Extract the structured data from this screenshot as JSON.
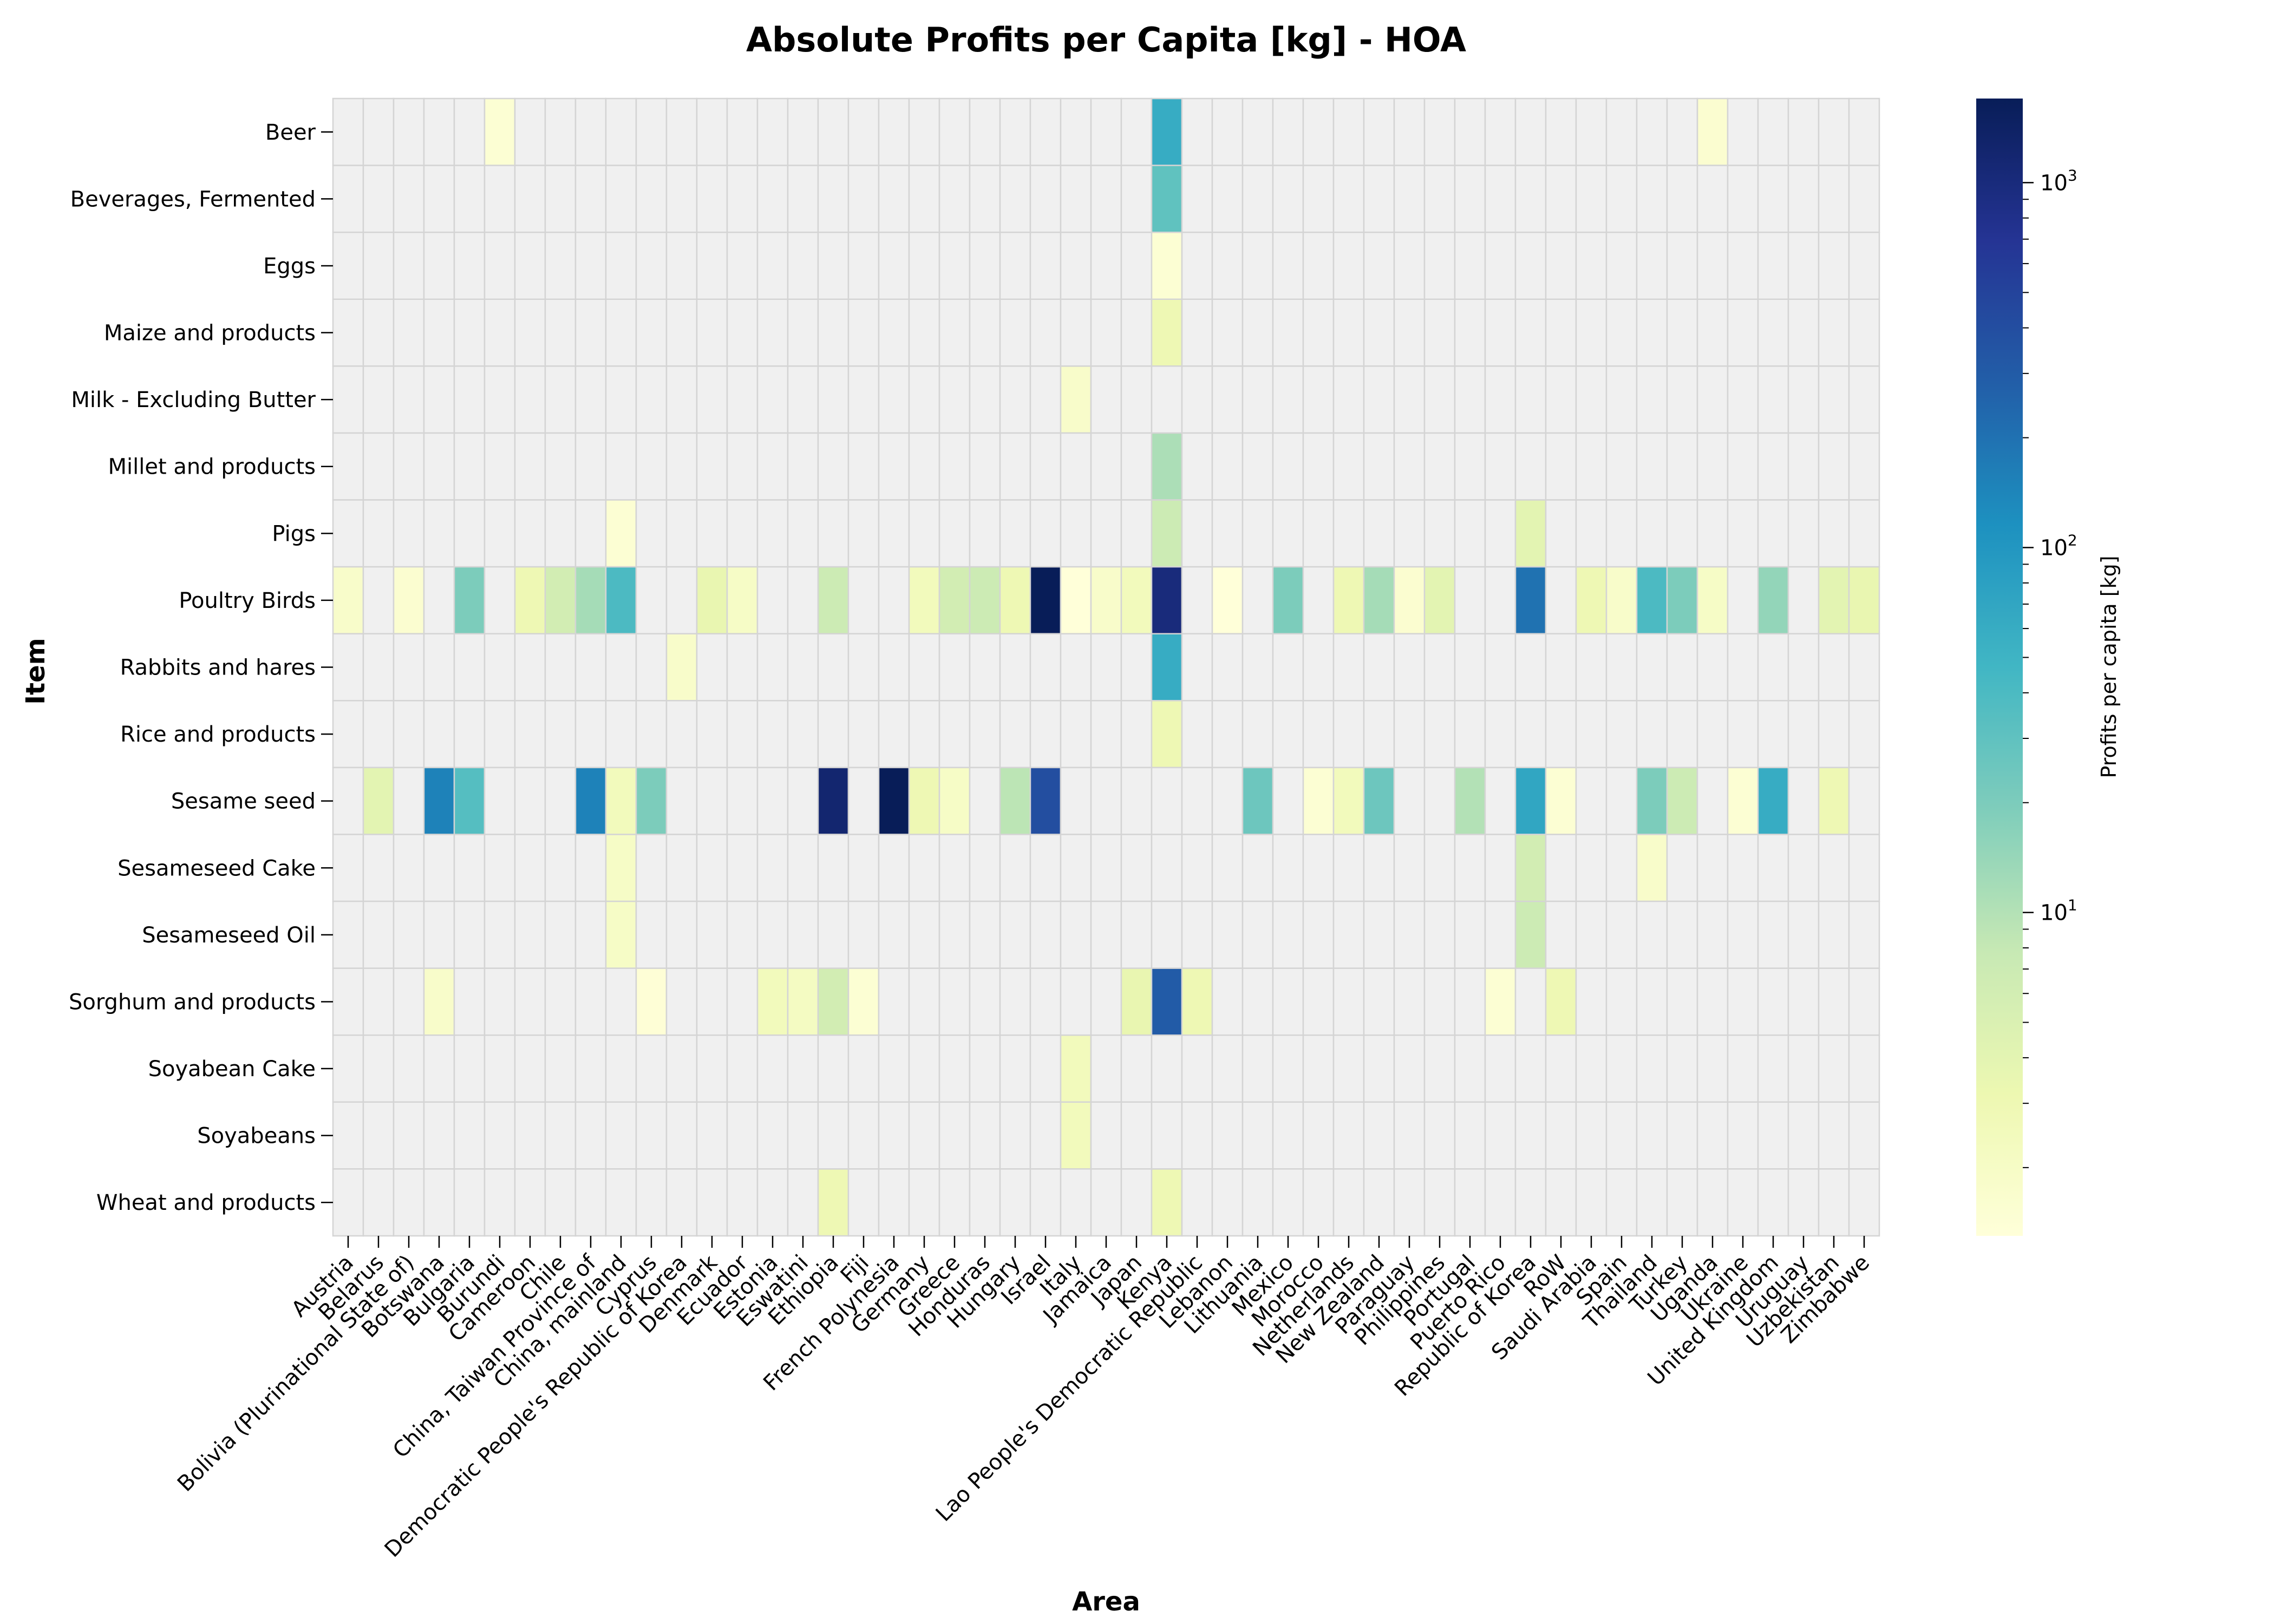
{
  "chart_data": {
    "type": "heatmap",
    "title": "Absolute Profits per Capita [kg] - HOA",
    "xlabel": "Area",
    "ylabel": "Item",
    "x": [
      "Austria",
      "Belarus",
      "Bolivia (Plurinational State of)",
      "Botswana",
      "Bulgaria",
      "Burundi",
      "Cameroon",
      "Chile",
      "China, Taiwan Province of",
      "China, mainland",
      "Cyprus",
      "Democratic People's Republic of Korea",
      "Denmark",
      "Ecuador",
      "Estonia",
      "Eswatini",
      "Ethiopia",
      "Fiji",
      "French Polynesia",
      "Germany",
      "Greece",
      "Honduras",
      "Hungary",
      "Israel",
      "Italy",
      "Jamaica",
      "Japan",
      "Kenya",
      "Lao People's Democratic Republic",
      "Lebanon",
      "Lithuania",
      "Mexico",
      "Morocco",
      "Netherlands",
      "New Zealand",
      "Paraguay",
      "Philippines",
      "Portugal",
      "Puerto Rico",
      "Republic of Korea",
      "RoW",
      "Saudi Arabia",
      "Spain",
      "Thailand",
      "Turkey",
      "Uganda",
      "Ukraine",
      "United Kingdom",
      "Uruguay",
      "Uzbekistan",
      "Zimbabwe"
    ],
    "y": [
      "Beer",
      "Beverages, Fermented",
      "Eggs",
      "Maize and products",
      "Milk - Excluding Butter",
      "Millet and products",
      "Pigs",
      "Poultry Birds",
      "Rabbits and hares",
      "Rice and products",
      "Sesame seed",
      "Sesameseed Cake",
      "Sesameseed Oil",
      "Sorghum and products",
      "Soyabean Cake",
      "Soyabeans",
      "Wheat and products"
    ],
    "cells": [
      {
        "item": "Beer",
        "area": "Burundi",
        "value": 1.5
      },
      {
        "item": "Beer",
        "area": "Kenya",
        "value": 60
      },
      {
        "item": "Beer",
        "area": "Uganda",
        "value": 1.6
      },
      {
        "item": "Beverages, Fermented",
        "area": "Kenya",
        "value": 30
      },
      {
        "item": "Eggs",
        "area": "Kenya",
        "value": 1.5
      },
      {
        "item": "Maize and products",
        "area": "Kenya",
        "value": 3
      },
      {
        "item": "Milk - Excluding Butter",
        "area": "Italy",
        "value": 1.8
      },
      {
        "item": "Millet and products",
        "area": "Kenya",
        "value": 11
      },
      {
        "item": "Pigs",
        "area": "China, mainland",
        "value": 1.5
      },
      {
        "item": "Pigs",
        "area": "Kenya",
        "value": 7
      },
      {
        "item": "Pigs",
        "area": "Republic of Korea",
        "value": 4
      },
      {
        "item": "Poultry Birds",
        "area": "Austria",
        "value": 1.8
      },
      {
        "item": "Poultry Birds",
        "area": "Bolivia (Plurinational State of)",
        "value": 1.6
      },
      {
        "item": "Poultry Birds",
        "area": "Bulgaria",
        "value": 20
      },
      {
        "item": "Poultry Birds",
        "area": "Cameroon",
        "value": 3
      },
      {
        "item": "Poultry Birds",
        "area": "Chile",
        "value": 6
      },
      {
        "item": "Poultry Birds",
        "area": "China, Taiwan Province of",
        "value": 12
      },
      {
        "item": "Poultry Birds",
        "area": "China, mainland",
        "value": 40
      },
      {
        "item": "Poultry Birds",
        "area": "Denmark",
        "value": 3.5
      },
      {
        "item": "Poultry Birds",
        "area": "Ecuador",
        "value": 2
      },
      {
        "item": "Poultry Birds",
        "area": "Ethiopia",
        "value": 7
      },
      {
        "item": "Poultry Birds",
        "area": "Germany",
        "value": 2.5
      },
      {
        "item": "Poultry Birds",
        "area": "Greece",
        "value": 6
      },
      {
        "item": "Poultry Birds",
        "area": "Honduras",
        "value": 7
      },
      {
        "item": "Poultry Birds",
        "area": "Hungary",
        "value": 3
      },
      {
        "item": "Poultry Birds",
        "area": "Israel",
        "value": 1700
      },
      {
        "item": "Poultry Birds",
        "area": "Italy",
        "value": 1.3
      },
      {
        "item": "Poultry Birds",
        "area": "Jamaica",
        "value": 1.8
      },
      {
        "item": "Poultry Birds",
        "area": "Japan",
        "value": 2.5
      },
      {
        "item": "Poultry Birds",
        "area": "Kenya",
        "value": 1000
      },
      {
        "item": "Poultry Birds",
        "area": "Lebanon",
        "value": 1.3
      },
      {
        "item": "Poultry Birds",
        "area": "Mexico",
        "value": 20
      },
      {
        "item": "Poultry Birds",
        "area": "Netherlands",
        "value": 3
      },
      {
        "item": "Poultry Birds",
        "area": "New Zealand",
        "value": 12
      },
      {
        "item": "Poultry Birds",
        "area": "Paraguay",
        "value": 1.6
      },
      {
        "item": "Poultry Birds",
        "area": "Philippines",
        "value": 4
      },
      {
        "item": "Poultry Birds",
        "area": "Republic of Korea",
        "value": 200
      },
      {
        "item": "Poultry Birds",
        "area": "Saudi Arabia",
        "value": 3
      },
      {
        "item": "Poultry Birds",
        "area": "Spain",
        "value": 1.8
      },
      {
        "item": "Poultry Birds",
        "area": "Thailand",
        "value": 40
      },
      {
        "item": "Poultry Birds",
        "area": "Turkey",
        "value": 20
      },
      {
        "item": "Poultry Birds",
        "area": "Uganda",
        "value": 2
      },
      {
        "item": "Poultry Birds",
        "area": "United Kingdom",
        "value": 15
      },
      {
        "item": "Poultry Birds",
        "area": "Uzbekistan",
        "value": 4
      },
      {
        "item": "Poultry Birds",
        "area": "Zimbabwe",
        "value": 3.5
      },
      {
        "item": "Rabbits and hares",
        "area": "Democratic People's Republic of Korea",
        "value": 1.8
      },
      {
        "item": "Rabbits and hares",
        "area": "Kenya",
        "value": 60
      },
      {
        "item": "Rice and products",
        "area": "Kenya",
        "value": 3
      },
      {
        "item": "Sesame seed",
        "area": "Belarus",
        "value": 4
      },
      {
        "item": "Sesame seed",
        "area": "Botswana",
        "value": 150
      },
      {
        "item": "Sesame seed",
        "area": "Bulgaria",
        "value": 35
      },
      {
        "item": "Sesame seed",
        "area": "China, Taiwan Province of",
        "value": 150
      },
      {
        "item": "Sesame seed",
        "area": "China, mainland",
        "value": 2.5
      },
      {
        "item": "Sesame seed",
        "area": "Cyprus",
        "value": 20
      },
      {
        "item": "Sesame seed",
        "area": "Ethiopia",
        "value": 1200
      },
      {
        "item": "Sesame seed",
        "area": "French Polynesia",
        "value": 1700
      },
      {
        "item": "Sesame seed",
        "area": "Germany",
        "value": 3
      },
      {
        "item": "Sesame seed",
        "area": "Greece",
        "value": 2
      },
      {
        "item": "Sesame seed",
        "area": "Hungary",
        "value": 9
      },
      {
        "item": "Sesame seed",
        "area": "Israel",
        "value": 400
      },
      {
        "item": "Sesame seed",
        "area": "Lithuania",
        "value": 25
      },
      {
        "item": "Sesame seed",
        "area": "Morocco",
        "value": 1.5
      },
      {
        "item": "Sesame seed",
        "area": "Netherlands",
        "value": 2.5
      },
      {
        "item": "Sesame seed",
        "area": "New Zealand",
        "value": 25
      },
      {
        "item": "Sesame seed",
        "area": "Portugal",
        "value": 10
      },
      {
        "item": "Sesame seed",
        "area": "Republic of Korea",
        "value": 70
      },
      {
        "item": "Sesame seed",
        "area": "RoW",
        "value": 1.5
      },
      {
        "item": "Sesame seed",
        "area": "Thailand",
        "value": 20
      },
      {
        "item": "Sesame seed",
        "area": "Turkey",
        "value": 7
      },
      {
        "item": "Sesame seed",
        "area": "Ukraine",
        "value": 1.5
      },
      {
        "item": "Sesame seed",
        "area": "United Kingdom",
        "value": 60
      },
      {
        "item": "Sesame seed",
        "area": "Uzbekistan",
        "value": 3
      },
      {
        "item": "Sesameseed Cake",
        "area": "China, mainland",
        "value": 2
      },
      {
        "item": "Sesameseed Cake",
        "area": "Republic of Korea",
        "value": 6
      },
      {
        "item": "Sesameseed Cake",
        "area": "Thailand",
        "value": 1.8
      },
      {
        "item": "Sesameseed Oil",
        "area": "China, mainland",
        "value": 2
      },
      {
        "item": "Sesameseed Oil",
        "area": "Republic of Korea",
        "value": 7
      },
      {
        "item": "Sorghum and products",
        "area": "Botswana",
        "value": 1.8
      },
      {
        "item": "Sorghum and products",
        "area": "Cyprus",
        "value": 1.4
      },
      {
        "item": "Sorghum and products",
        "area": "Estonia",
        "value": 2.5
      },
      {
        "item": "Sorghum and products",
        "area": "Eswatini",
        "value": 2.2
      },
      {
        "item": "Sorghum and products",
        "area": "Ethiopia",
        "value": 6
      },
      {
        "item": "Sorghum and products",
        "area": "Fiji",
        "value": 1.5
      },
      {
        "item": "Sorghum and products",
        "area": "Japan",
        "value": 3.5
      },
      {
        "item": "Sorghum and products",
        "area": "Kenya",
        "value": 300
      },
      {
        "item": "Sorghum and products",
        "area": "Lao People's Democratic Republic",
        "value": 3
      },
      {
        "item": "Sorghum and products",
        "area": "Puerto Rico",
        "value": 1.5
      },
      {
        "item": "Sorghum and products",
        "area": "RoW",
        "value": 3
      },
      {
        "item": "Soyabean Cake",
        "area": "Italy",
        "value": 2.5
      },
      {
        "item": "Soyabeans",
        "area": "Italy",
        "value": 2.5
      },
      {
        "item": "Wheat and products",
        "area": "Ethiopia",
        "value": 3
      },
      {
        "item": "Wheat and products",
        "area": "Kenya",
        "value": 3
      }
    ],
    "missing_color": "#f0f0f0",
    "colormap": "YlGnBu",
    "scale": "log",
    "vmin": 1.3,
    "vmax": 1700,
    "colorbar": {
      "label": "Profits per capita [kg]",
      "ticks": [
        {
          "value": 10,
          "label": "10",
          "exp": "1"
        },
        {
          "value": 100,
          "label": "10",
          "exp": "2"
        },
        {
          "value": 1000,
          "label": "10",
          "exp": "3"
        }
      ],
      "position": "right"
    },
    "grid": true
  }
}
